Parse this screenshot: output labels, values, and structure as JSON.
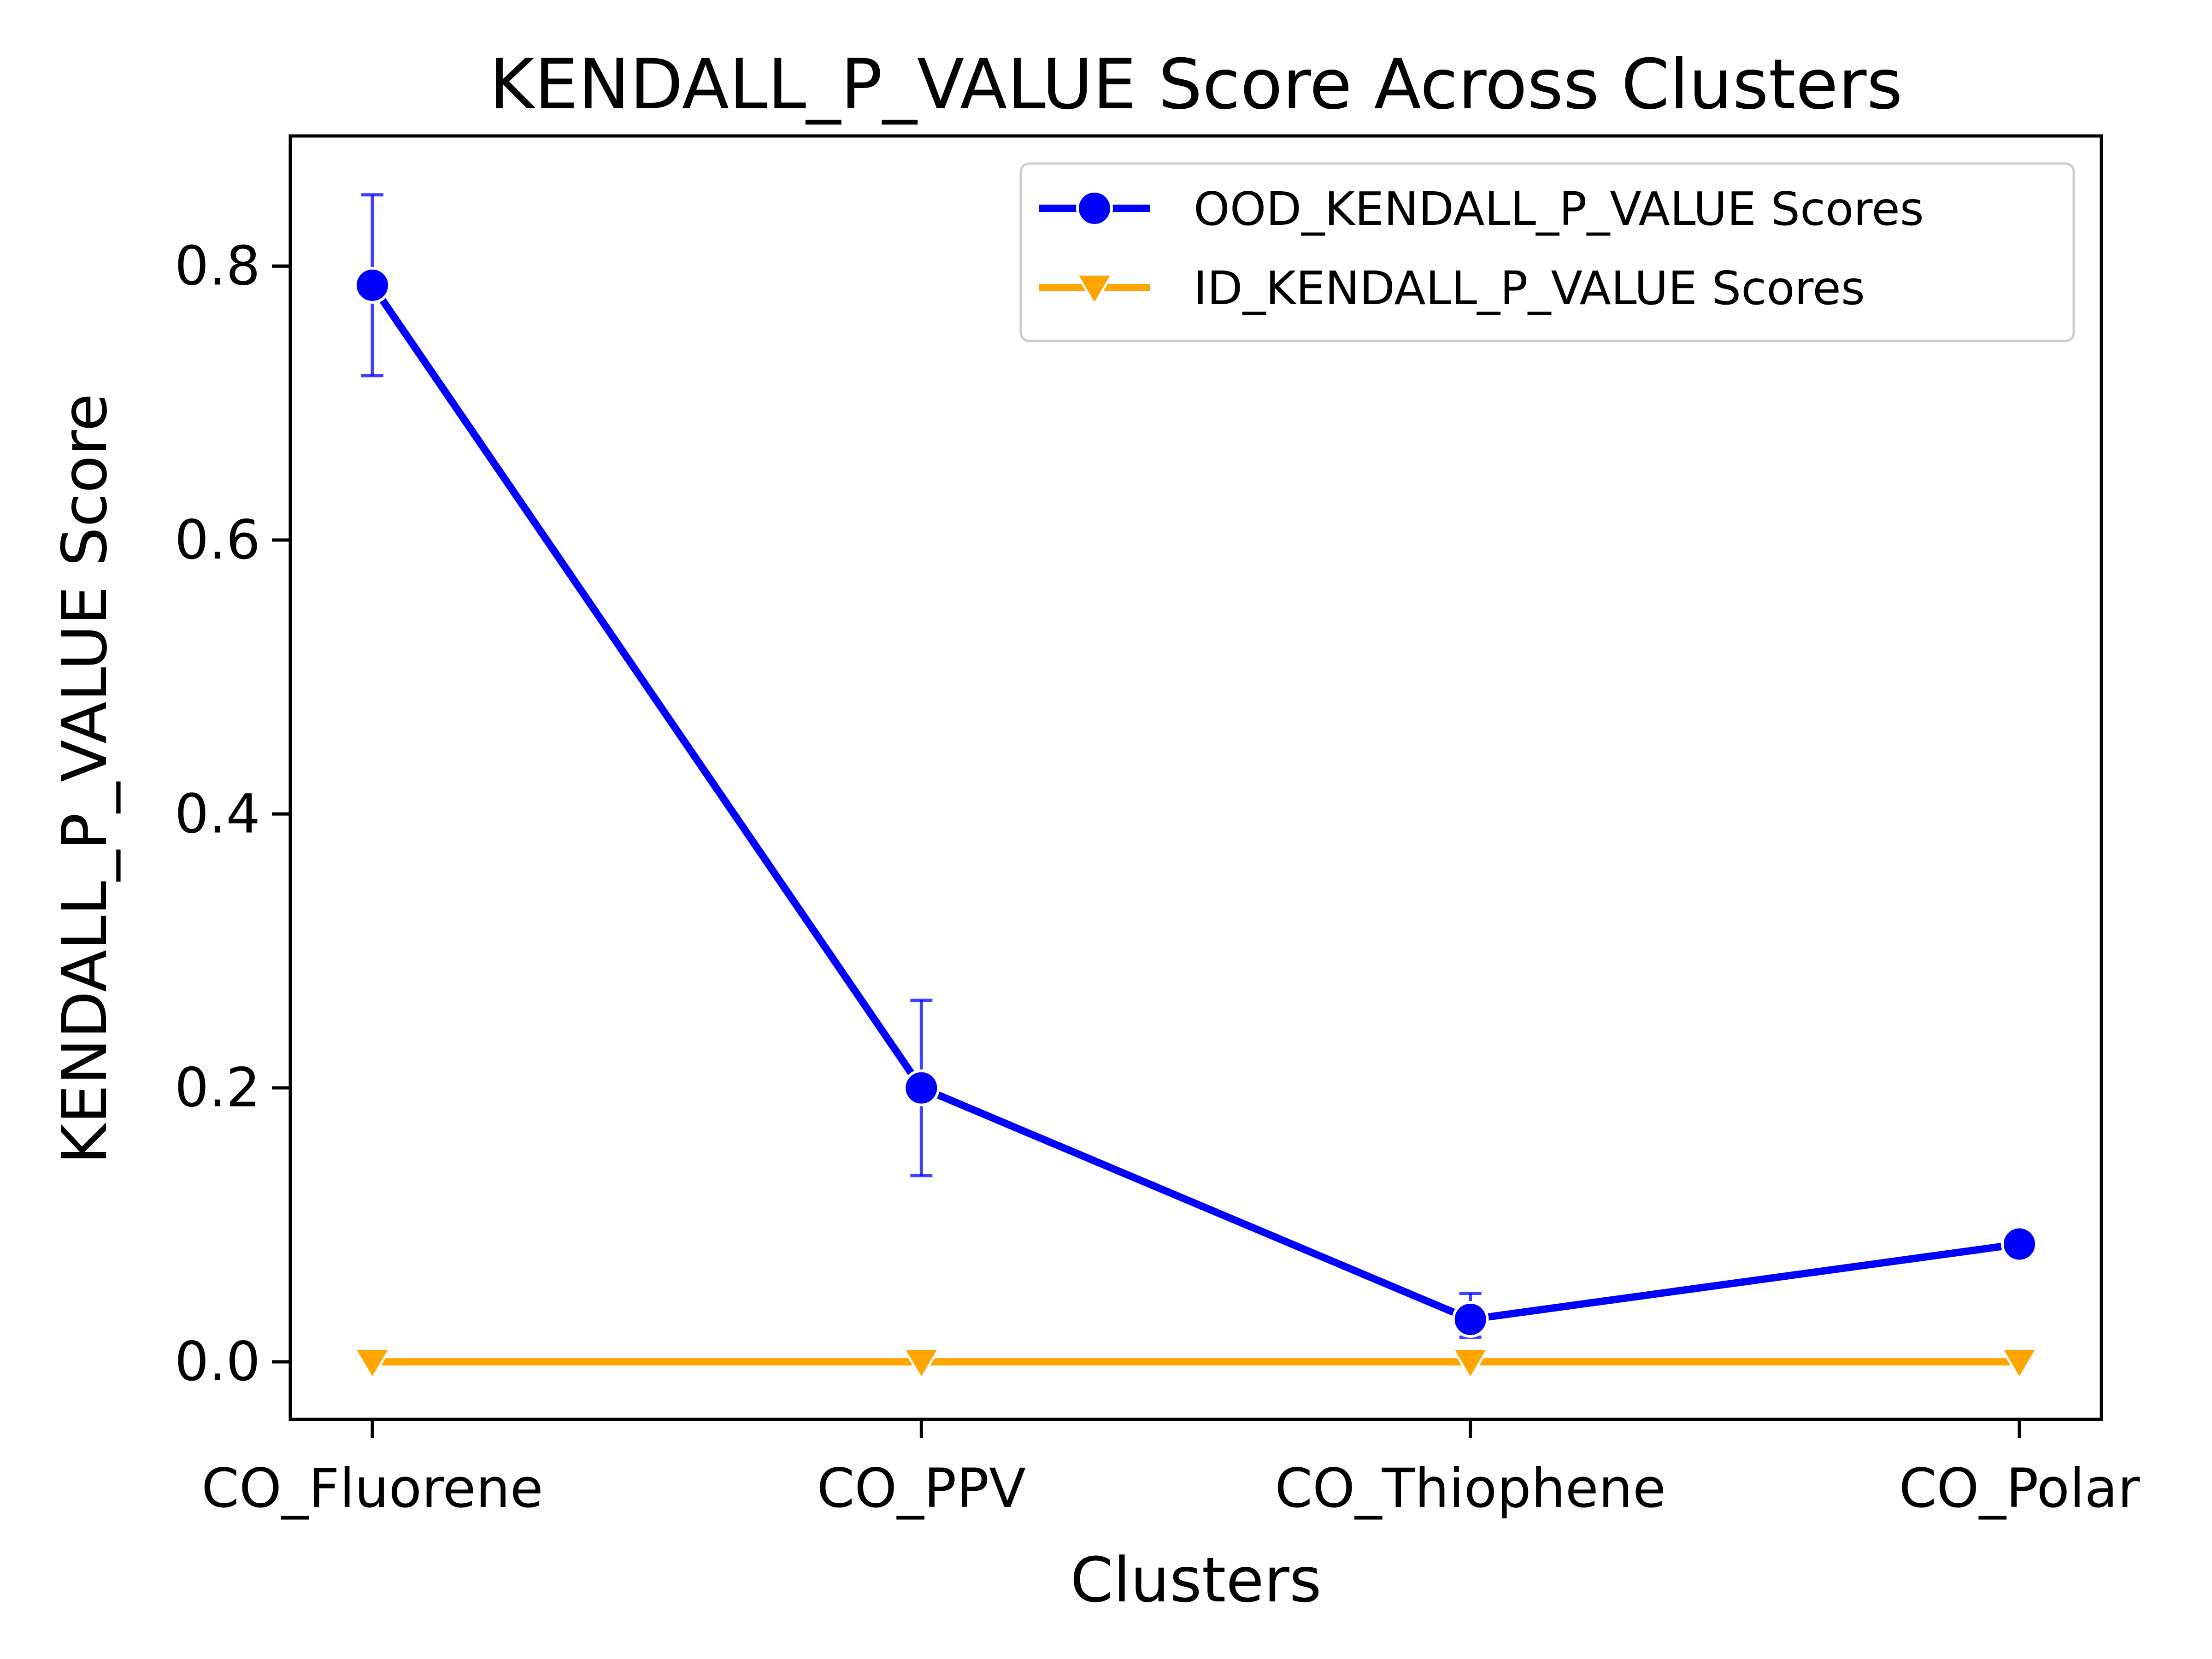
{
  "chart_data": {
    "type": "line",
    "title": "KENDALL_P_VALUE Score Across Clusters",
    "xlabel": "Clusters",
    "ylabel": "KENDALL_P_VALUE Score",
    "categories": [
      "CO_Fluorene",
      "CO_PPV",
      "CO_Thiophene",
      "CO_Polar"
    ],
    "ylim": [
      -0.042,
      0.895
    ],
    "yticks": [
      0.0,
      0.2,
      0.4,
      0.6,
      0.8
    ],
    "ytick_labels": [
      "0.0",
      "0.2",
      "0.4",
      "0.6",
      "0.8"
    ],
    "grid": false,
    "legend_position": "top-right",
    "series": [
      {
        "name": "OOD_KENDALL_P_VALUE Scores",
        "values": [
          0.786,
          0.2,
          0.031,
          0.086
        ],
        "error_low": [
          0.72,
          0.136,
          0.018,
          0.086
        ],
        "error_high": [
          0.852,
          0.264,
          0.05,
          0.086
        ],
        "color": "#0000ff",
        "marker": "circle"
      },
      {
        "name": "ID_KENDALL_P_VALUE Scores",
        "values": [
          0.0,
          0.0,
          0.0,
          0.0
        ],
        "color": "#ffa500",
        "marker": "triangle-down"
      }
    ]
  }
}
